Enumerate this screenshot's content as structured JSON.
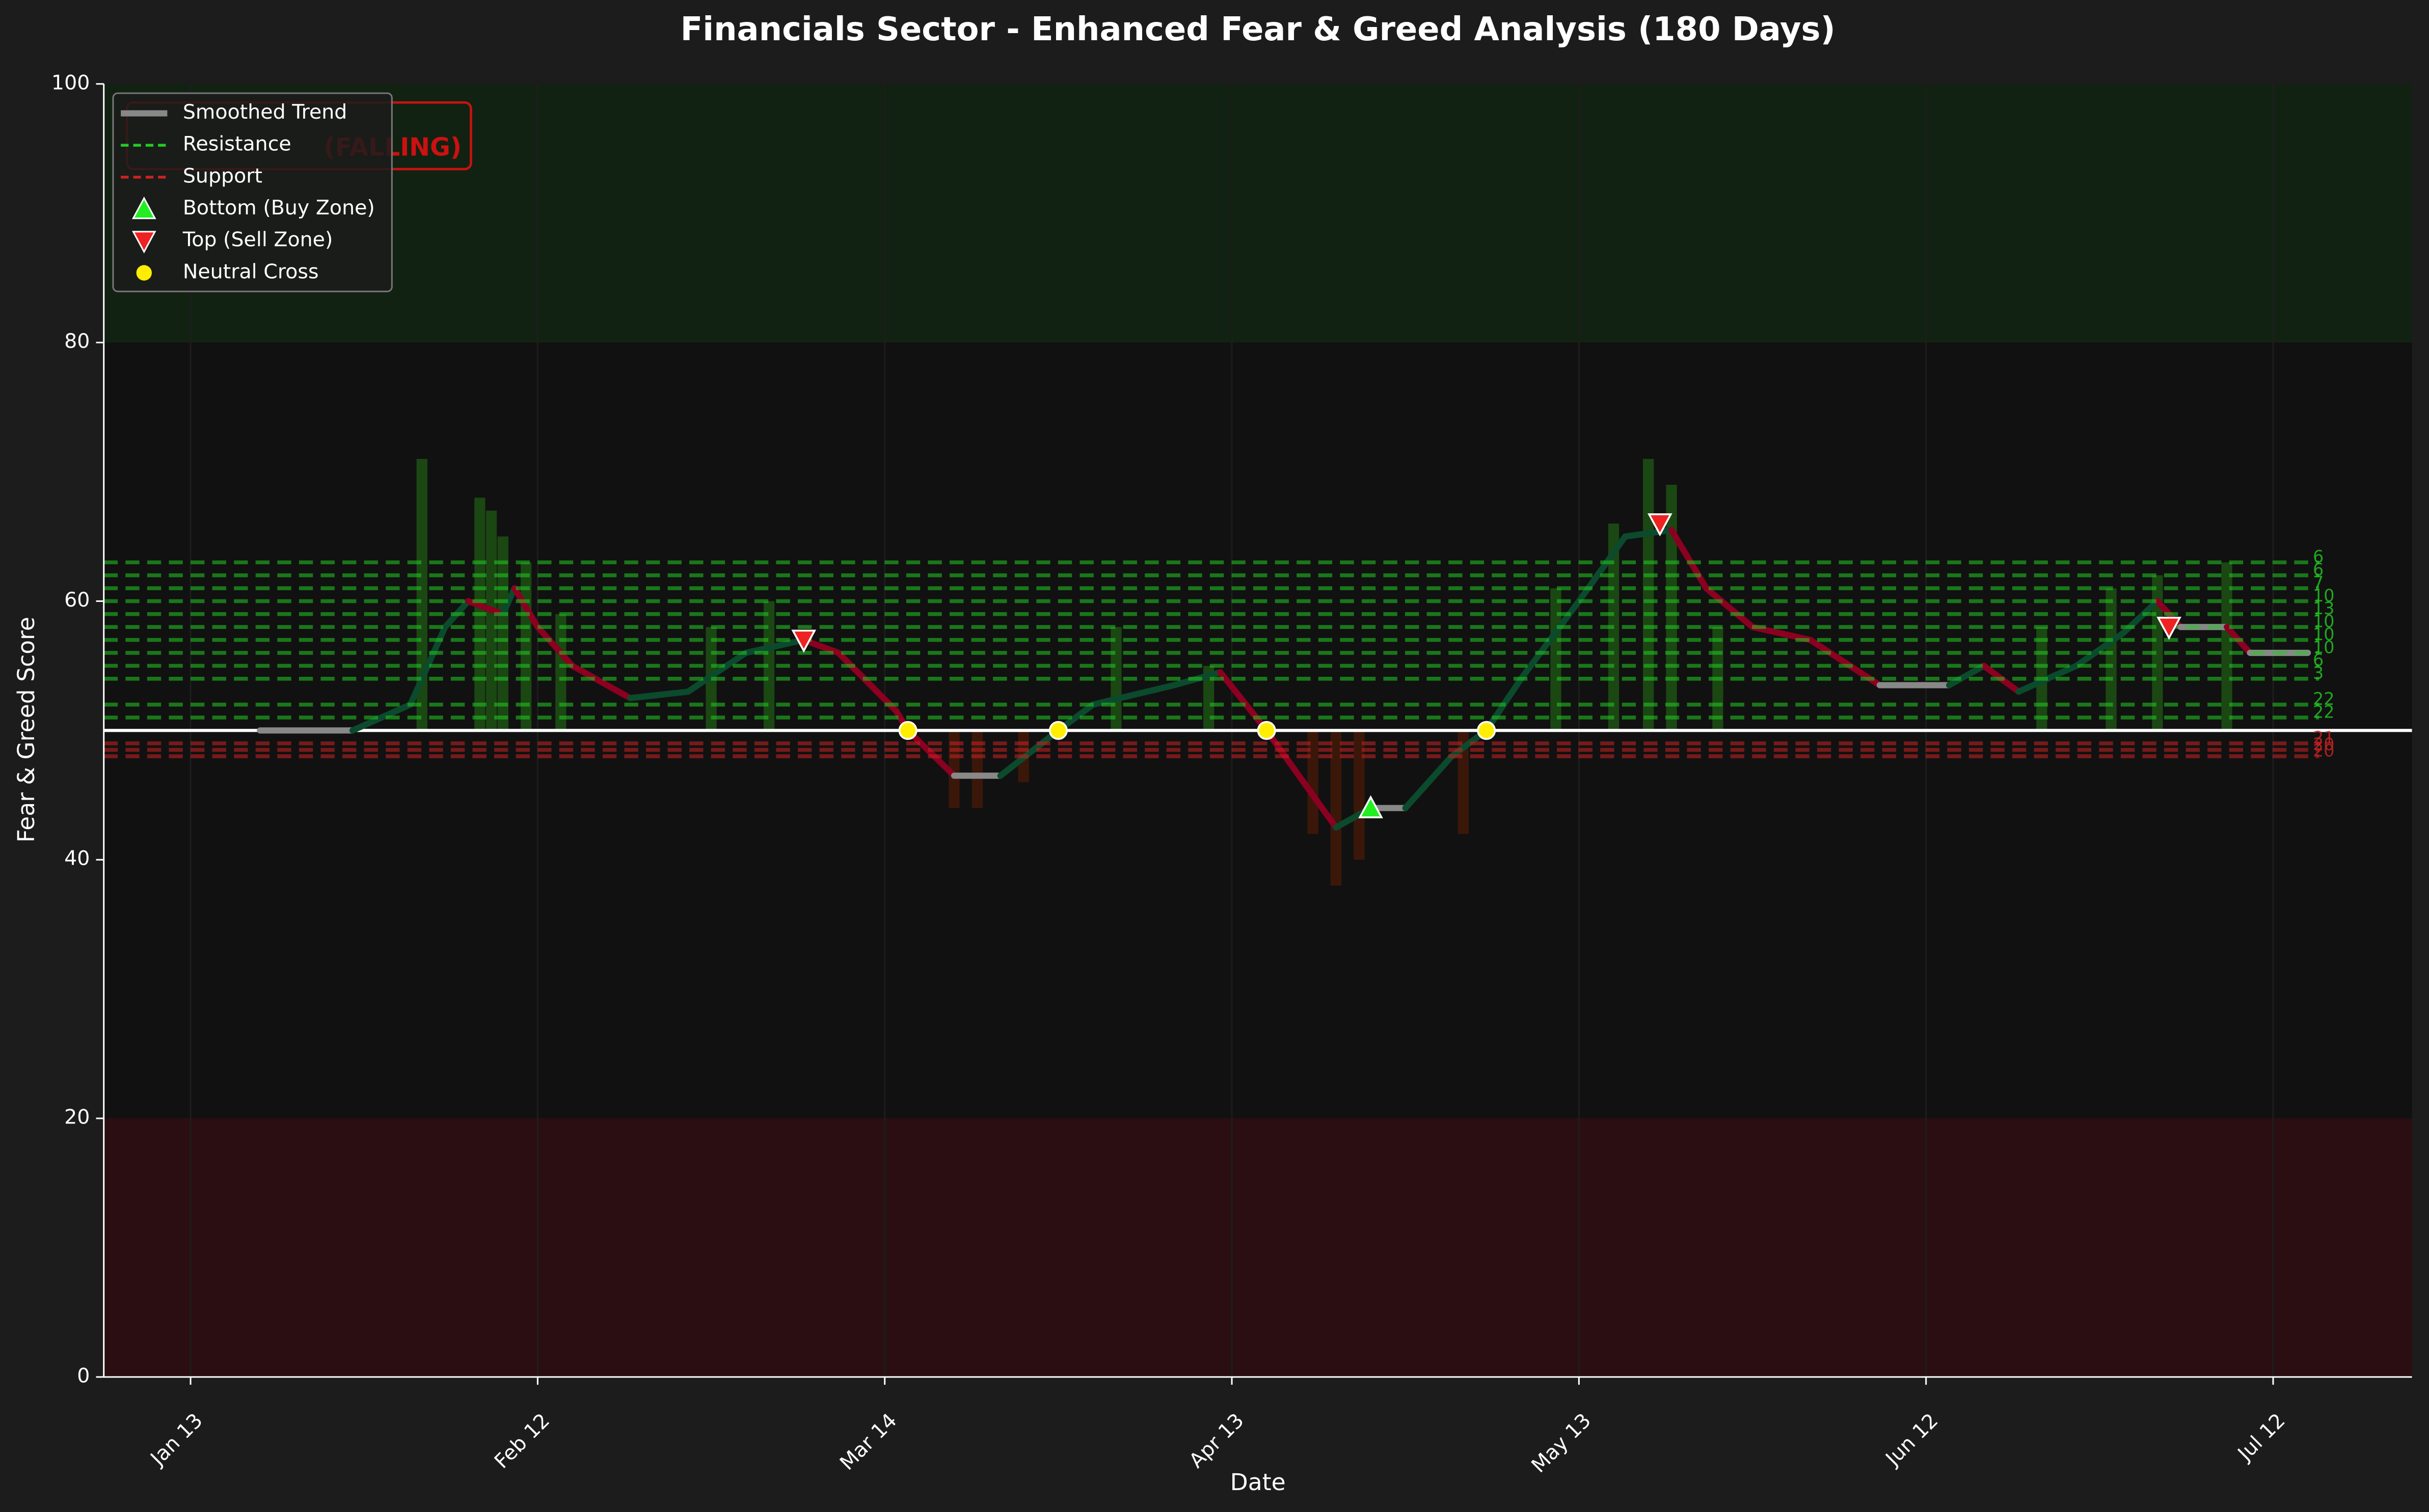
{
  "chart_data": {
    "type": "line",
    "title": "Financials Sector - Enhanced Fear & Greed Analysis (180 Days)",
    "x_label": "Date",
    "y_label": "Fear & Greed Score",
    "annotation": "(FALLING)",
    "xlim": [
      -7.5,
      192
    ],
    "xticks": [
      {
        "value": 0,
        "label": "Jan 13"
      },
      {
        "value": 30,
        "label": "Feb 12"
      },
      {
        "value": 60,
        "label": "Mar 14"
      },
      {
        "value": 90,
        "label": "Apr 13"
      },
      {
        "value": 120,
        "label": "May 13"
      },
      {
        "value": 150,
        "label": "Jun 12"
      },
      {
        "value": 180,
        "label": "Jul 12"
      }
    ],
    "ylim": [
      0,
      100
    ],
    "yticks": [
      0,
      20,
      40,
      60,
      80,
      100
    ],
    "neutral_level": 50,
    "greed_zone": [
      80,
      100
    ],
    "fear_zone": [
      0,
      20
    ],
    "legend_position": "upper left",
    "series": [
      {
        "name": "Smoothed Trend",
        "kind": "trend",
        "color": "#888888",
        "rise_color": "#0b4a2c",
        "fall_color": "#8b0020",
        "x": [
          6,
          14,
          19,
          22,
          24,
          27,
          28,
          30,
          33,
          38,
          43,
          48,
          53,
          56,
          61,
          62,
          66,
          70,
          75,
          78,
          85,
          89,
          93,
          99,
          102,
          105,
          109,
          112,
          115,
          120,
          124,
          128,
          131,
          135,
          140,
          146,
          152,
          155,
          158,
          163,
          167,
          170,
          172,
          176,
          178,
          183
        ],
        "values": [
          50,
          50,
          52,
          58,
          60,
          59,
          61,
          58,
          55,
          52.5,
          53,
          56,
          57,
          56,
          51.5,
          50,
          46.5,
          46.5,
          50,
          52,
          53.5,
          54.5,
          50,
          42.5,
          44,
          44,
          48,
          50,
          54,
          60,
          65,
          65.5,
          61,
          58,
          57,
          53.5,
          53.5,
          55,
          53,
          55,
          57.5,
          60,
          58,
          58,
          56,
          56
        ]
      },
      {
        "name": "Resistance",
        "kind": "resistance",
        "color": "#22cc22",
        "levels": [
          63,
          62,
          61,
          60,
          59,
          58,
          57,
          56,
          55,
          54,
          52,
          51
        ],
        "touches": [
          6,
          6,
          7,
          10,
          13,
          10,
          10,
          10,
          6,
          3,
          22,
          22
        ]
      },
      {
        "name": "Support",
        "kind": "support",
        "color": "#cc2222",
        "levels": [
          49,
          48.5,
          48
        ],
        "touches": [
          21,
          20,
          20
        ]
      },
      {
        "name": "Bottom (Buy Zone)",
        "kind": "bottom",
        "color": "#22ee22",
        "x": [
          102
        ],
        "values": [
          44
        ]
      },
      {
        "name": "Top (Sell Zone)",
        "kind": "top",
        "color": "#ee2222",
        "x": [
          53,
          127,
          171
        ],
        "values": [
          57,
          66,
          58
        ]
      },
      {
        "name": "Neutral Cross",
        "kind": "cross",
        "color": "#ffee00",
        "x": [
          62,
          75,
          93,
          112
        ],
        "values": [
          50,
          50,
          50,
          50
        ]
      }
    ],
    "bars": {
      "x": [
        20,
        25,
        26,
        27,
        29,
        32,
        45,
        50,
        66,
        68,
        72,
        80,
        88,
        97,
        99,
        101,
        110,
        118,
        123,
        126,
        128,
        132,
        160,
        166,
        170,
        176
      ],
      "values": [
        71,
        68,
        67,
        65,
        63,
        59,
        58,
        60,
        44,
        44,
        46,
        58,
        55,
        42,
        38,
        40,
        42,
        61,
        66,
        71,
        69,
        58,
        58,
        61,
        62,
        63
      ]
    }
  }
}
